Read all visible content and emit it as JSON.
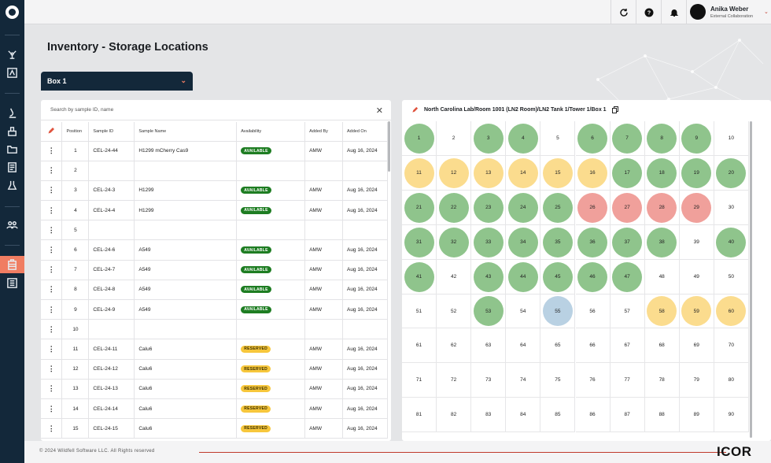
{
  "app": {
    "user_name": "Anika Weber",
    "user_role": "External Collaboration",
    "footer": "© 2024 Wildfell Software LLC. All Rights reserved",
    "brand": "ICOR"
  },
  "page": {
    "title": "Inventory - Storage Locations",
    "box_select": "Box 1",
    "search_placeholder": "Search by sample ID, name",
    "location_path": "North Carolina Lab/Room 1001 (LN2 Room)/LN2 Tank 1/Tower 1/Box 1"
  },
  "table": {
    "headers": [
      "Position",
      "Sample ID",
      "Sample Name",
      "Availability",
      "Added By",
      "Added On"
    ],
    "rows": [
      {
        "pos": "1",
        "id": "CEL-24-44",
        "name": "H1299 mCherry Cas9",
        "status": "AVAILABLE",
        "by": "AMW",
        "on": "Aug 16, 2024"
      },
      {
        "pos": "2",
        "id": "",
        "name": "",
        "status": "",
        "by": "",
        "on": ""
      },
      {
        "pos": "3",
        "id": "CEL-24-3",
        "name": "H1299",
        "status": "AVAILABLE",
        "by": "AMW",
        "on": "Aug 16, 2024"
      },
      {
        "pos": "4",
        "id": "CEL-24-4",
        "name": "H1299",
        "status": "AVAILABLE",
        "by": "AMW",
        "on": "Aug 16, 2024"
      },
      {
        "pos": "5",
        "id": "",
        "name": "",
        "status": "",
        "by": "",
        "on": ""
      },
      {
        "pos": "6",
        "id": "CEL-24-6",
        "name": "A549",
        "status": "AVAILABLE",
        "by": "AMW",
        "on": "Aug 16, 2024"
      },
      {
        "pos": "7",
        "id": "CEL-24-7",
        "name": "A549",
        "status": "AVAILABLE",
        "by": "AMW",
        "on": "Aug 16, 2024"
      },
      {
        "pos": "8",
        "id": "CEL-24-8",
        "name": "A549",
        "status": "AVAILABLE",
        "by": "AMW",
        "on": "Aug 16, 2024"
      },
      {
        "pos": "9",
        "id": "CEL-24-9",
        "name": "A549",
        "status": "AVAILABLE",
        "by": "AMW",
        "on": "Aug 16, 2024"
      },
      {
        "pos": "10",
        "id": "",
        "name": "",
        "status": "",
        "by": "",
        "on": ""
      },
      {
        "pos": "11",
        "id": "CEL-24-11",
        "name": "Calu6",
        "status": "RESERVED",
        "by": "AMW",
        "on": "Aug 16, 2024"
      },
      {
        "pos": "12",
        "id": "CEL-24-12",
        "name": "Calu6",
        "status": "RESERVED",
        "by": "AMW",
        "on": "Aug 16, 2024"
      },
      {
        "pos": "13",
        "id": "CEL-24-13",
        "name": "Calu6",
        "status": "RESERVED",
        "by": "AMW",
        "on": "Aug 16, 2024"
      },
      {
        "pos": "14",
        "id": "CEL-24-14",
        "name": "Calu6",
        "status": "RESERVED",
        "by": "AMW",
        "on": "Aug 16, 2024"
      },
      {
        "pos": "15",
        "id": "CEL-24-15",
        "name": "Calu6",
        "status": "RESERVED",
        "by": "AMW",
        "on": "Aug 16, 2024"
      }
    ]
  },
  "grid": {
    "colors": {
      "g": "#8fc48c",
      "y": "#fbdc8e",
      "r": "#f0a09b",
      "b": "#b9d1e3"
    },
    "cells": {
      "1": "g",
      "3": "g",
      "4": "g",
      "6": "g",
      "7": "g",
      "8": "g",
      "9": "g",
      "11": "y",
      "12": "y",
      "13": "y",
      "14": "y",
      "15": "y",
      "16": "y",
      "17": "g",
      "18": "g",
      "19": "g",
      "20": "g",
      "21": "g",
      "22": "g",
      "23": "g",
      "24": "g",
      "25": "g",
      "26": "r",
      "27": "r",
      "28": "r",
      "29": "r",
      "31": "g",
      "32": "g",
      "33": "g",
      "34": "g",
      "35": "g",
      "36": "g",
      "37": "g",
      "38": "g",
      "40": "g",
      "41": "g",
      "43": "g",
      "44": "g",
      "45": "g",
      "46": "g",
      "47": "g",
      "53": "g",
      "55": "b",
      "58": "y",
      "59": "y",
      "60": "y"
    },
    "count": 90
  }
}
